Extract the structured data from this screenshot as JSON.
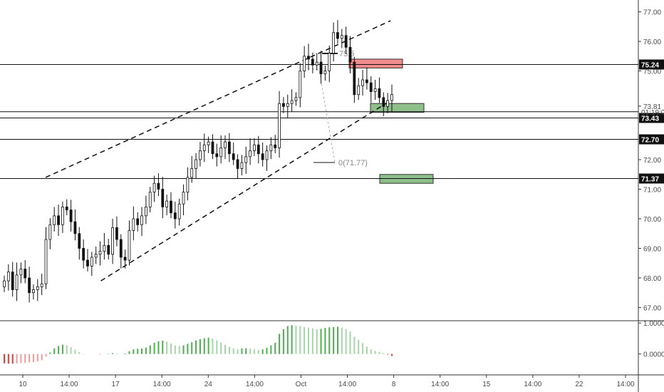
{
  "chart_data": {
    "type": "candlestick",
    "title": "",
    "price_axis": {
      "ticks": [
        "77.00",
        "76.00",
        "75.00",
        "73.81",
        "72.00",
        "71.00",
        "70.00",
        "69.00",
        "68.00",
        "67.00"
      ],
      "ylim": [
        66.6,
        77.4
      ]
    },
    "time_axis": {
      "ticks": [
        "10",
        "14:00",
        "17",
        "14:00",
        "24",
        "14:00",
        "Oct",
        "14:00",
        "8",
        "14:00",
        "15",
        "14:00",
        "22",
        "14:00"
      ]
    },
    "horizontal_levels": [
      {
        "value": 75.24,
        "label": "75.24"
      },
      {
        "value": 73.43,
        "label": "73.43"
      },
      {
        "value": 72.7,
        "label": "72.70"
      },
      {
        "value": 71.37,
        "label": "71.37"
      }
    ],
    "countdown_label": "01:19:09",
    "fib_labels": [
      "75.5",
      "0(71.77)"
    ],
    "zones": [
      {
        "kind": "supply",
        "color": "#f28b8b",
        "top": 75.4,
        "bottom": 75.1
      },
      {
        "kind": "demand",
        "color": "#8fbf8a",
        "top": 73.9,
        "bottom": 73.6
      },
      {
        "kind": "demand",
        "color": "#8fbf8a",
        "top": 71.5,
        "bottom": 71.2
      }
    ],
    "channel": {
      "upper": {
        "from_bar": 0.06,
        "from": 71.4,
        "to_bar": 0.56,
        "to": 76.7
      },
      "lower": {
        "from_bar": 0.14,
        "from": 67.9,
        "to_bar": 0.56,
        "to": 74.0
      }
    },
    "series": {
      "closes": [
        67.9,
        68.2,
        67.6,
        68.1,
        68.3,
        68.0,
        67.5,
        67.6,
        67.7,
        67.8,
        69.3,
        69.8,
        70.1,
        69.8,
        70.4,
        70.3,
        69.9,
        69.5,
        69.0,
        68.6,
        68.4,
        68.7,
        68.8,
        68.9,
        69.1,
        68.8,
        69.7,
        69.3,
        68.7,
        68.6,
        69.6,
        70.0,
        69.8,
        70.1,
        70.4,
        70.9,
        71.2,
        71.0,
        70.4,
        70.6,
        70.2,
        70.0,
        70.5,
        70.9,
        71.4,
        71.7,
        72.0,
        72.3,
        72.5,
        72.6,
        72.2,
        72.1,
        72.4,
        72.6,
        72.2,
        72.0,
        71.7,
        71.9,
        72.1,
        72.3,
        72.5,
        72.2,
        72.0,
        72.3,
        72.5,
        72.4,
        73.9,
        73.8,
        73.9,
        74.0,
        74.1,
        75.0,
        75.5,
        75.4,
        75.2,
        75.3,
        74.9,
        75.0,
        75.6,
        76.3,
        76.1,
        76.2,
        75.8,
        75.3,
        74.2,
        74.5,
        74.7,
        74.6,
        74.3,
        74.4,
        74.1,
        73.8,
        74.0,
        74.2
      ],
      "oscillator": [
        -0.3,
        -0.31,
        -0.31,
        -0.3,
        -0.29,
        -0.28,
        -0.27,
        -0.26,
        -0.24,
        -0.2,
        -0.08,
        0.05,
        0.18,
        0.26,
        0.3,
        0.28,
        0.22,
        0.14,
        0.06,
        0.01,
        0.0,
        0.0,
        0.0,
        -0.01,
        0.0,
        0.01,
        0.03,
        0.02,
        0.0,
        0.02,
        0.09,
        0.15,
        0.17,
        0.18,
        0.21,
        0.28,
        0.36,
        0.41,
        0.43,
        0.4,
        0.34,
        0.28,
        0.26,
        0.28,
        0.33,
        0.38,
        0.44,
        0.48,
        0.51,
        0.52,
        0.5,
        0.44,
        0.37,
        0.3,
        0.23,
        0.18,
        0.15,
        0.18,
        0.19,
        0.17,
        0.15,
        0.13,
        0.15,
        0.2,
        0.28,
        0.36,
        0.65,
        0.8,
        0.9,
        0.93,
        0.91,
        0.9,
        0.87,
        0.85,
        0.83,
        0.8,
        0.81,
        0.84,
        0.86,
        0.87,
        0.88,
        0.84,
        0.8,
        0.73,
        0.56,
        0.46,
        0.35,
        0.24,
        0.15,
        0.1,
        0.07,
        0.03,
        -0.02,
        -0.06
      ]
    },
    "oscillator_axis": {
      "ticks": [
        "1.0000",
        "0.0000"
      ],
      "ylim": [
        -0.65,
        1.05
      ]
    }
  }
}
